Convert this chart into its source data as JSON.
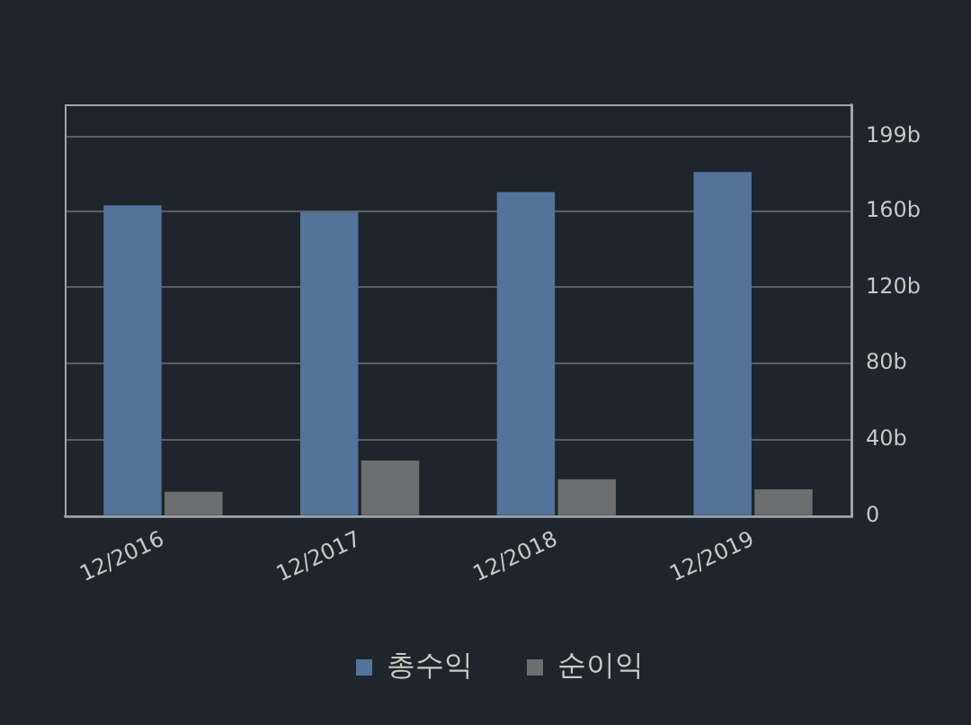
{
  "chart_data": {
    "type": "bar",
    "categories": [
      "12/2016",
      "12/2017",
      "12/2018",
      "12/2019"
    ],
    "series": [
      {
        "name": "총수익",
        "color": "#53739b",
        "values": [
          163,
          159.5,
          170,
          180.5
        ]
      },
      {
        "name": "순이익",
        "color": "#6c6e70",
        "values": [
          12.7,
          29.2,
          19.4,
          14
        ]
      }
    ],
    "ylim": [
      0,
      216
    ],
    "yticks": [
      {
        "value": 0,
        "label": "0"
      },
      {
        "value": 40,
        "label": "40b"
      },
      {
        "value": 80,
        "label": "80b"
      },
      {
        "value": 120,
        "label": "120b"
      },
      {
        "value": 160,
        "label": "160b"
      },
      {
        "value": 199,
        "label": "199b"
      }
    ],
    "grid": "y",
    "legend": "bottom"
  }
}
